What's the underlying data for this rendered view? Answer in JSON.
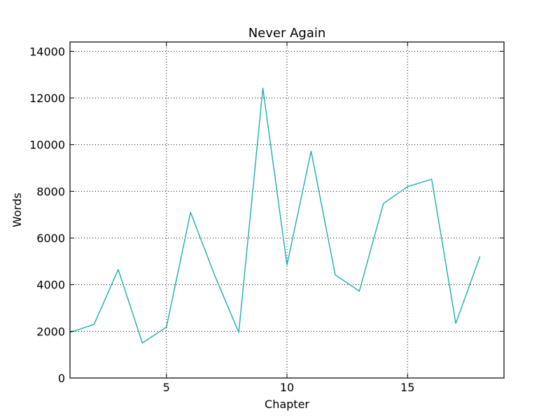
{
  "chart_data": {
    "type": "line",
    "title": "Never Again",
    "xlabel": "Chapter",
    "ylabel": "Words",
    "xlim": [
      1,
      19
    ],
    "ylim": [
      0,
      14400
    ],
    "xticks": [
      5,
      10,
      15
    ],
    "yticks": [
      0,
      2000,
      4000,
      6000,
      8000,
      10000,
      12000,
      14000
    ],
    "grid": true,
    "series": [
      {
        "color": "#17b0b0",
        "x": [
          1,
          2,
          3,
          4,
          5,
          6,
          7,
          8,
          9,
          10,
          11,
          12,
          13,
          14,
          15,
          16,
          17,
          18
        ],
        "y": [
          1950,
          2300,
          4650,
          1500,
          2180,
          7100,
          4400,
          1950,
          12420,
          4850,
          9720,
          4420,
          3720,
          7480,
          8200,
          8520,
          2340,
          5200
        ]
      }
    ]
  }
}
